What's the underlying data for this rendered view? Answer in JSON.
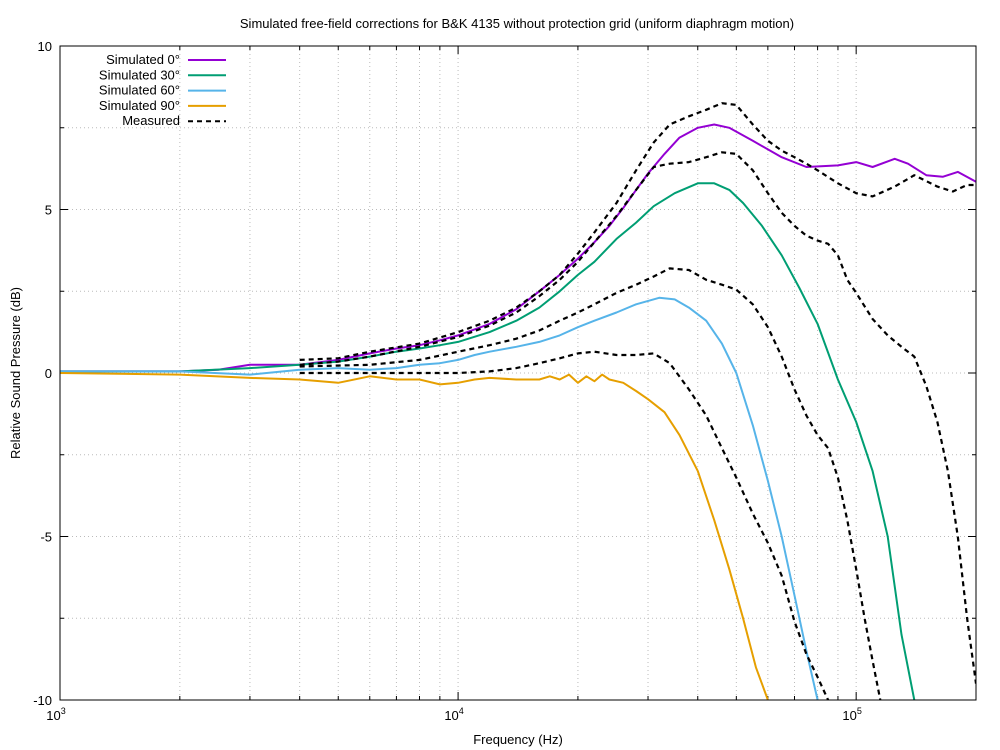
{
  "chart_data": {
    "type": "line",
    "title": "Simulated free-field corrections for B&K 4135 without protection grid (uniform diaphragm motion)",
    "xlabel": "Frequency (Hz)",
    "ylabel": "Relative Sound Pressure (dB)",
    "x_scale": "log",
    "xlim": [
      1000,
      200000
    ],
    "ylim": [
      -10,
      10
    ],
    "grid": true,
    "legend_position": "top-left",
    "y_ticks": [
      {
        "value": 10,
        "label": "10"
      },
      {
        "value": 5,
        "label": "5"
      },
      {
        "value": 0,
        "label": "0"
      },
      {
        "value": -5,
        "label": "-5"
      },
      {
        "value": -10,
        "label": "-10"
      }
    ],
    "x_ticks": [
      {
        "value": 1000,
        "base": "10",
        "exp": "3"
      },
      {
        "value": 10000,
        "base": "10",
        "exp": "4"
      },
      {
        "value": 100000,
        "base": "10",
        "exp": "5"
      }
    ],
    "series": [
      {
        "name": "Simulated 0°",
        "color": "#9400d3",
        "dash": "solid",
        "x": [
          1000,
          2000,
          2500,
          3000,
          3500,
          4000,
          5000,
          6000,
          7000,
          8000,
          9000,
          10000,
          12000,
          14000,
          16000,
          18000,
          20000,
          22000,
          24000,
          26000,
          28000,
          30000,
          33000,
          36000,
          40000,
          44000,
          48000,
          55000,
          65000,
          75000,
          90000,
          100000,
          110000,
          125000,
          135000,
          150000,
          165000,
          180000,
          200000
        ],
        "y": [
          0.05,
          0.05,
          0.1,
          0.25,
          0.25,
          0.25,
          0.4,
          0.6,
          0.75,
          0.85,
          1.0,
          1.15,
          1.5,
          1.95,
          2.5,
          3.0,
          3.5,
          4.0,
          4.5,
          5.05,
          5.6,
          6.1,
          6.7,
          7.2,
          7.5,
          7.6,
          7.5,
          7.1,
          6.6,
          6.3,
          6.35,
          6.45,
          6.3,
          6.55,
          6.4,
          6.05,
          6.0,
          6.15,
          5.85
        ]
      },
      {
        "name": "Simulated 30°",
        "color": "#009e73",
        "dash": "solid",
        "x": [
          1000,
          2000,
          3000,
          4000,
          5000,
          6000,
          7000,
          8000,
          9000,
          10000,
          12000,
          14000,
          16000,
          18000,
          20000,
          22000,
          25000,
          28000,
          31000,
          35000,
          40000,
          44000,
          48000,
          52000,
          58000,
          65000,
          72000,
          80000,
          90000,
          100000,
          110000,
          120000,
          130000,
          140000
        ],
        "y": [
          0.05,
          0.05,
          0.15,
          0.25,
          0.35,
          0.5,
          0.65,
          0.75,
          0.85,
          0.95,
          1.25,
          1.6,
          2.0,
          2.5,
          3.0,
          3.4,
          4.1,
          4.6,
          5.1,
          5.5,
          5.8,
          5.8,
          5.6,
          5.2,
          4.5,
          3.6,
          2.6,
          1.5,
          -0.2,
          -1.5,
          -3.0,
          -5.0,
          -8.0,
          -10.0
        ]
      },
      {
        "name": "Simulated 60°",
        "color": "#56b4e9",
        "dash": "solid",
        "x": [
          1000,
          2000,
          3000,
          4000,
          5000,
          6000,
          7000,
          8000,
          9000,
          10000,
          11000,
          12000,
          14000,
          16000,
          18000,
          20000,
          22000,
          25000,
          28000,
          32000,
          35000,
          38000,
          42000,
          46000,
          50000,
          55000,
          60000,
          65000,
          70000,
          75000,
          80000
        ],
        "y": [
          0.05,
          0.05,
          -0.05,
          0.1,
          0.15,
          0.1,
          0.15,
          0.25,
          0.3,
          0.4,
          0.55,
          0.65,
          0.8,
          0.95,
          1.15,
          1.4,
          1.6,
          1.85,
          2.1,
          2.3,
          2.25,
          2.0,
          1.6,
          0.9,
          0.0,
          -1.6,
          -3.3,
          -5.0,
          -6.8,
          -8.5,
          -10.0
        ]
      },
      {
        "name": "Simulated 90°",
        "color": "#e69f00",
        "dash": "solid",
        "x": [
          1000,
          2000,
          3000,
          4000,
          5000,
          6000,
          7000,
          8000,
          9000,
          10000,
          11000,
          12000,
          14000,
          16000,
          17000,
          18000,
          19000,
          20000,
          21000,
          22000,
          23000,
          24000,
          26000,
          28000,
          30000,
          33000,
          36000,
          40000,
          44000,
          48000,
          52000,
          56000,
          60000
        ],
        "y": [
          0.0,
          -0.05,
          -0.15,
          -0.2,
          -0.3,
          -0.1,
          -0.2,
          -0.2,
          -0.35,
          -0.3,
          -0.2,
          -0.15,
          -0.2,
          -0.2,
          -0.1,
          -0.2,
          -0.05,
          -0.3,
          -0.1,
          -0.25,
          -0.05,
          -0.2,
          -0.3,
          -0.55,
          -0.8,
          -1.2,
          -1.9,
          -3.0,
          -4.5,
          -6.0,
          -7.5,
          -9.0,
          -10.0
        ]
      },
      {
        "name": "Measured",
        "color": "#000000",
        "dash": "dashed",
        "x": [
          4000,
          5000,
          6000,
          8000,
          10000,
          12000,
          14000,
          16000,
          18000,
          20000,
          22000,
          25000,
          28000,
          31000,
          34000,
          38000,
          42000,
          46000,
          50000,
          55000,
          60000,
          65000,
          70000,
          75000,
          80000,
          90000,
          100000,
          110000,
          125000,
          140000,
          160000,
          175000,
          190000,
          200000
        ],
        "y": [
          0.4,
          0.45,
          0.65,
          0.9,
          1.25,
          1.6,
          2.0,
          2.5,
          3.0,
          3.65,
          4.3,
          5.2,
          6.2,
          7.05,
          7.6,
          7.85,
          8.05,
          8.25,
          8.2,
          7.6,
          7.1,
          6.8,
          6.6,
          6.4,
          6.2,
          5.8,
          5.5,
          5.4,
          5.7,
          6.05,
          5.7,
          5.55,
          5.75,
          5.75
        ]
      },
      {
        "name": "Measured",
        "color": "#000000",
        "dash": "dashed",
        "x": [
          4000,
          5000,
          6000,
          8000,
          10000,
          12000,
          14000,
          16000,
          18000,
          20000,
          22000,
          25000,
          28000,
          31000,
          34000,
          38000,
          42000,
          46000,
          50000,
          55000,
          60000,
          65000,
          70000,
          75000,
          80000,
          85000,
          90000,
          95000,
          100000,
          110000,
          120000,
          130000,
          140000,
          150000,
          160000,
          170000,
          180000,
          190000,
          200000
        ],
        "y": [
          0.25,
          0.35,
          0.5,
          0.8,
          1.1,
          1.45,
          1.85,
          2.35,
          2.85,
          3.4,
          4.0,
          4.8,
          5.6,
          6.3,
          6.4,
          6.45,
          6.6,
          6.75,
          6.7,
          6.2,
          5.5,
          4.9,
          4.5,
          4.2,
          4.05,
          3.95,
          3.6,
          2.85,
          2.45,
          1.65,
          1.15,
          0.8,
          0.5,
          -0.4,
          -1.5,
          -3.0,
          -5.0,
          -7.5,
          -9.5
        ]
      },
      {
        "name": "Measured",
        "color": "#000000",
        "dash": "dashed",
        "x": [
          4000,
          6000,
          8000,
          10000,
          12000,
          14000,
          16000,
          18000,
          20000,
          22000,
          25000,
          28000,
          31000,
          34000,
          38000,
          42000,
          46000,
          50000,
          55000,
          60000,
          65000,
          70000,
          75000,
          80000,
          85000,
          90000,
          95000,
          100000,
          105000,
          110000,
          115000
        ],
        "y": [
          0.2,
          0.25,
          0.4,
          0.65,
          0.85,
          1.05,
          1.3,
          1.6,
          1.85,
          2.1,
          2.45,
          2.7,
          2.95,
          3.2,
          3.15,
          2.85,
          2.7,
          2.55,
          2.1,
          1.4,
          0.5,
          -0.5,
          -1.3,
          -1.9,
          -2.3,
          -3.2,
          -4.5,
          -6.0,
          -7.5,
          -8.8,
          -10.0
        ]
      },
      {
        "name": "Measured",
        "color": "#000000",
        "dash": "dashed",
        "x": [
          4000,
          6000,
          8000,
          10000,
          12000,
          14000,
          16000,
          18000,
          20000,
          22000,
          25000,
          28000,
          31000,
          34000,
          38000,
          42000,
          46000,
          50000,
          55000,
          60000,
          65000,
          70000,
          75000,
          80000,
          85000
        ],
        "y": [
          0.0,
          0.0,
          0.0,
          0.0,
          0.05,
          0.15,
          0.3,
          0.45,
          0.6,
          0.65,
          0.55,
          0.55,
          0.6,
          0.3,
          -0.5,
          -1.3,
          -2.3,
          -3.2,
          -4.3,
          -5.2,
          -6.2,
          -7.6,
          -8.6,
          -9.3,
          -10.0
        ]
      }
    ]
  }
}
